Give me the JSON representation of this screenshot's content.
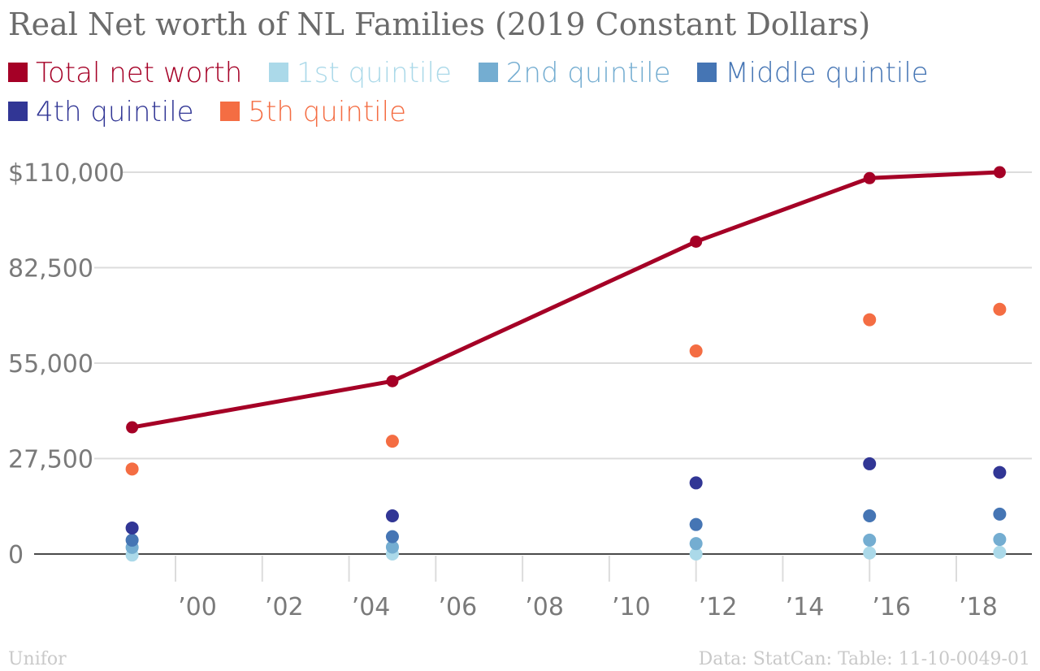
{
  "colors": {
    "total": "#a50026",
    "q1": "#abd9e9",
    "q2": "#74add1",
    "middle": "#4575b4",
    "q4": "#313695",
    "q5": "#f46d43"
  },
  "footer": {
    "left": "Unifor",
    "right": "Data: StatCan: Table: 11-10-0049-01"
  },
  "chart_data": {
    "type": "line",
    "title": "Real Net worth of NL Families (2019 Constant Dollars)",
    "xlabel": "",
    "ylabel": "",
    "ylim": [
      0,
      110000
    ],
    "xlim": [
      1997.2,
      2019.8
    ],
    "yticks": [
      0,
      27500,
      55000,
      82500,
      110000
    ],
    "ytick_labels": [
      "0",
      "27,500",
      "55,000",
      "82,500",
      "$110,000"
    ],
    "xticks": [
      2000,
      2002,
      2004,
      2006,
      2008,
      2010,
      2012,
      2014,
      2016,
      2018
    ],
    "xtick_labels": [
      "’00",
      "’02",
      "’04",
      "’06",
      "’08",
      "’10",
      "’12",
      "’14",
      "’16",
      "’18"
    ],
    "x": [
      1999,
      2005,
      2012,
      2016,
      2019
    ],
    "series": [
      {
        "key": "total",
        "name": "Total net worth",
        "style": "line",
        "values": [
          36500,
          49800,
          90000,
          108300,
          110000
        ]
      },
      {
        "key": "q1",
        "name": "1st quintile",
        "style": "points",
        "values": [
          -300,
          0,
          0,
          300,
          500
        ]
      },
      {
        "key": "q2",
        "name": "2nd quintile",
        "style": "points",
        "values": [
          1900,
          2000,
          3000,
          4000,
          4200
        ]
      },
      {
        "key": "middle",
        "name": "Middle quintile",
        "style": "points",
        "values": [
          4000,
          5000,
          8500,
          11000,
          11500
        ]
      },
      {
        "key": "q4",
        "name": "4th quintile",
        "style": "points",
        "values": [
          7500,
          11000,
          20500,
          26000,
          23500
        ]
      },
      {
        "key": "q5",
        "name": "5th quintile",
        "style": "points",
        "values": [
          24500,
          32500,
          58500,
          67500,
          70500
        ]
      }
    ]
  }
}
